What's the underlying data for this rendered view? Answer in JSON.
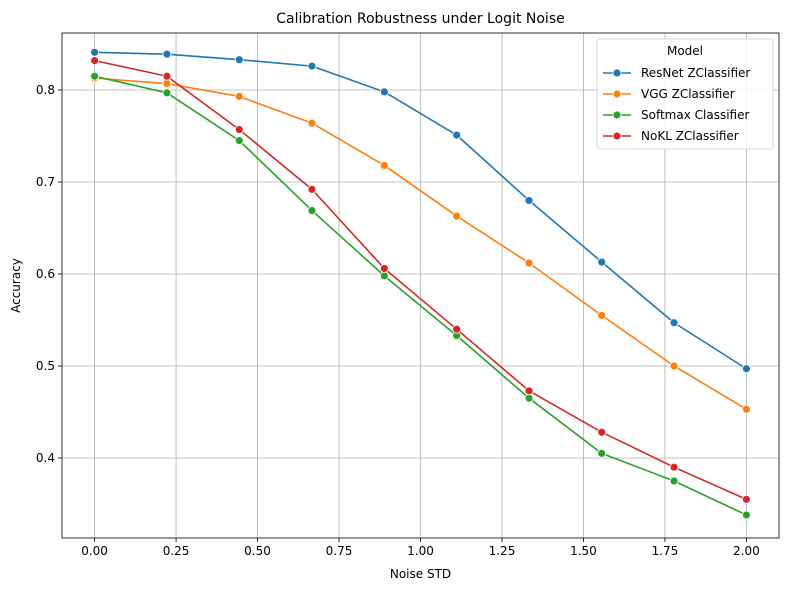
{
  "chart_data": {
    "type": "line",
    "title": "Calibration Robustness under Logit Noise",
    "xlabel": "Noise STD",
    "ylabel": "Accuracy",
    "xlim": [
      -0.1,
      2.1
    ],
    "ylim": [
      0.313,
      0.862
    ],
    "xticks": [
      0.0,
      0.25,
      0.5,
      0.75,
      1.0,
      1.25,
      1.5,
      1.75,
      2.0
    ],
    "xtick_labels": [
      "0.00",
      "0.25",
      "0.50",
      "0.75",
      "1.00",
      "1.25",
      "1.50",
      "1.75",
      "2.00"
    ],
    "yticks": [
      0.4,
      0.5,
      0.6,
      0.7,
      0.8
    ],
    "ytick_labels": [
      "0.4",
      "0.5",
      "0.6",
      "0.7",
      "0.8"
    ],
    "grid": true,
    "legend": {
      "title": "Model",
      "placement": "top-right"
    },
    "x": [
      0.0,
      0.222,
      0.444,
      0.667,
      0.889,
      1.111,
      1.333,
      1.556,
      1.778,
      2.0
    ],
    "series": [
      {
        "name": "ResNet ZClassifier",
        "color": "#1f77b4",
        "values": [
          0.841,
          0.839,
          0.833,
          0.826,
          0.798,
          0.751,
          0.68,
          0.613,
          0.547,
          0.497
        ]
      },
      {
        "name": "VGG ZClassifier",
        "color": "#ff7f0e",
        "values": [
          0.813,
          0.807,
          0.793,
          0.764,
          0.718,
          0.663,
          0.612,
          0.555,
          0.5,
          0.453
        ]
      },
      {
        "name": "Softmax Classifier",
        "color": "#2ca02c",
        "values": [
          0.815,
          0.797,
          0.745,
          0.669,
          0.598,
          0.533,
          0.465,
          0.405,
          0.375,
          0.338
        ]
      },
      {
        "name": "NoKL ZClassifier",
        "color": "#d62728",
        "values": [
          0.832,
          0.815,
          0.757,
          0.692,
          0.606,
          0.54,
          0.473,
          0.428,
          0.39,
          0.355
        ]
      }
    ]
  }
}
